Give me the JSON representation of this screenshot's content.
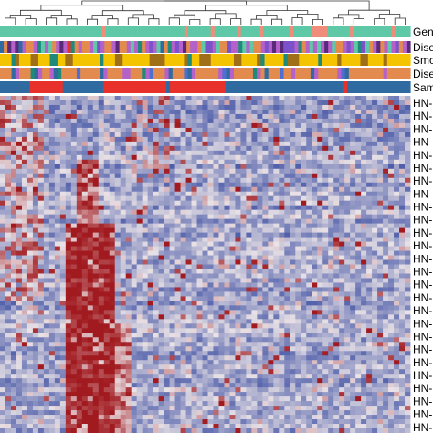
{
  "chart_data": {
    "type": "heatmap",
    "title": "",
    "annotation_tracks": [
      {
        "label": "Gen",
        "values": "gggggggggggggggggggggggggggsgggggggggggggggggggggsggggggsggggggsgggggsgggggggsgggggssssggggggsggggggggggsgggg"
      },
      {
        "label": "Dise",
        "values": "bodpdbpooptgpgopdprtopoopgvpoopdoopgptopvpgbotpvpdoppogvvpgoovpptgpgoopvpdpdvvvptopgpgpdpgoopvpgtvgopdopgpvopd"
      },
      {
        "label": "Smo",
        "values": "yyytmyyymmyyyttyymmyyyyyyytyyymmyyyyyyymmmmyyyyymtyymmmyyyyyymmyyyymtyyyyytmmmyyyyytyyyymyyyyymmyyyymyyyyyy"
      },
      {
        "label": "Dise",
        "values": "ooobpoootbpoopbtoooouooooobpooooppoootpuooopboooubpoooooopubpoooootpobooouoopoooobpooooopubooooooooopoooooo"
      },
      {
        "label": "Sam",
        "values": "bbbbbbbbrrrrrrrrrbbbbbbbbbbbrrrrrrrrrrrrrrrrrbrrrrrrrrrrrrrrrbbbbbbbbbbbbbbbbbbbbbbbbbbbbbbbbrbbbbbbbbbbbbbbbbb"
      }
    ],
    "annotation_colors": {
      "g": "#5fc8a6",
      "s": "#f08c7a",
      "o": "#e38a4f",
      "b": "#2f6aa0",
      "d": "#5a2a7a",
      "p": "#b461c9",
      "t": "#1f8a7a",
      "r": "#e8312a",
      "v": "#7b52c9",
      "y": "#f5c400",
      "m": "#a07018",
      "u": "#4d6fd1"
    },
    "row_labels": [
      "HN-",
      "HN-",
      "HN-",
      "HN-",
      "HN-",
      "HN-",
      "HN-",
      "HN-",
      "HN-",
      "HN-",
      "HN-",
      "HN-",
      "HN-",
      "HN-",
      "HN-",
      "HN-",
      "HN-",
      "HN-",
      "HN-",
      "HN-",
      "HN-",
      "HN-",
      "HN-",
      "HN-",
      "HN-",
      "HN-"
    ],
    "columns": 75,
    "rows": 74,
    "color_scale": {
      "low": "#4a5aa8",
      "mid": "#e9e2e6",
      "high": "#a11a1f"
    },
    "dendrogram": "column"
  }
}
